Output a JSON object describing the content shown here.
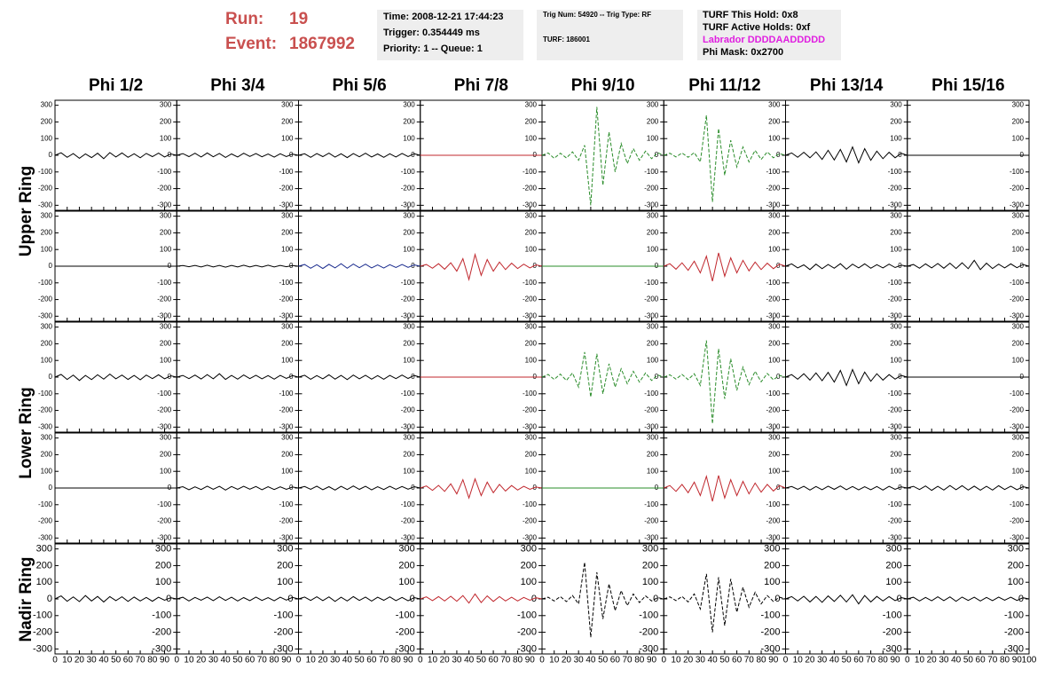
{
  "header": {
    "run_label": "Run:",
    "run": "19",
    "event_label": "Event:",
    "event": "1867992",
    "box1": [
      "Time: 2008-12-21 17:44:23",
      "Trigger: 0.354449 ms",
      "Priority: 1 -- Queue: 1"
    ],
    "box2": [
      "Trig Num: 54920 -- Trig Type: RF",
      "TURF: 186001"
    ],
    "box3": [
      "TURF This Hold: 0x8",
      "TURF Active Holds: 0xf",
      "Labrador DDDDAADDDDD",
      "Phi Mask: 0x2700"
    ]
  },
  "chart_data": {
    "type": "line",
    "columns": [
      "Phi 1/2",
      "Phi 3/4",
      "Phi 5/6",
      "Phi 7/8",
      "Phi 9/10",
      "Phi 11/12",
      "Phi 13/14",
      "Phi 15/16"
    ],
    "rows": [
      "Upper Ring",
      "Lower Ring",
      "Nadir Ring"
    ],
    "x": [
      0,
      5,
      10,
      15,
      20,
      25,
      30,
      35,
      40,
      45,
      50,
      55,
      60,
      65,
      70,
      75,
      80,
      85,
      90,
      95,
      100
    ],
    "xlim": [
      0,
      100
    ],
    "xticks": [
      0,
      10,
      20,
      30,
      40,
      50,
      60,
      70,
      80,
      90,
      100
    ],
    "ylim": [
      -330,
      330
    ],
    "yticks": [
      -300,
      -200,
      -100,
      0,
      100,
      200,
      300
    ],
    "panels": [
      {
        "color": "#000000",
        "values": [
          0,
          15,
          -12,
          10,
          -18,
          8,
          -14,
          12,
          -20,
          16,
          -10,
          14,
          -12,
          9,
          -15,
          11,
          -8,
          13,
          -10,
          8,
          0
        ]
      },
      {
        "color": "#000000",
        "values": [
          0,
          10,
          -8,
          12,
          -10,
          14,
          -9,
          11,
          -13,
          8,
          -10,
          12,
          -7,
          10,
          -9,
          8,
          -11,
          9,
          -8,
          7,
          0
        ]
      },
      {
        "color": "#000000",
        "values": [
          0,
          9,
          -12,
          10,
          -8,
          13,
          -11,
          9,
          -14,
          10,
          -9,
          12,
          -10,
          8,
          -12,
          9,
          -10,
          11,
          -8,
          9,
          0
        ]
      },
      {
        "color": "#c0272d",
        "values": [
          0,
          0,
          0,
          0,
          0,
          0,
          0,
          0,
          0,
          0,
          0,
          0,
          0,
          0,
          0,
          0,
          0,
          0,
          0,
          0,
          0
        ]
      },
      {
        "color": "#2a8c2a",
        "dashed": true,
        "values": [
          0,
          14,
          -18,
          12,
          -16,
          20,
          -30,
          60,
          -300,
          290,
          -180,
          140,
          -100,
          70,
          -50,
          40,
          -30,
          25,
          -20,
          15,
          0
        ]
      },
      {
        "color": "#2a8c2a",
        "dashed": true,
        "values": [
          0,
          12,
          -10,
          14,
          -12,
          16,
          -40,
          240,
          -280,
          160,
          -120,
          90,
          -70,
          50,
          -40,
          30,
          -25,
          20,
          -15,
          10,
          0
        ]
      },
      {
        "color": "#000000",
        "values": [
          0,
          14,
          -12,
          18,
          -15,
          20,
          -25,
          30,
          -28,
          35,
          -40,
          50,
          -45,
          40,
          -30,
          25,
          -20,
          18,
          -15,
          12,
          0
        ]
      },
      {
        "color": "#000000",
        "values": [
          0,
          0,
          0,
          0,
          0,
          0,
          0,
          0,
          0,
          0,
          0,
          0,
          0,
          0,
          0,
          0,
          0,
          0,
          0,
          0,
          0
        ]
      },
      {
        "color": "#000000",
        "values": [
          0,
          0,
          0,
          0,
          0,
          0,
          0,
          0,
          0,
          0,
          0,
          0,
          0,
          0,
          0,
          0,
          0,
          0,
          0,
          0,
          0
        ]
      },
      {
        "color": "#000000",
        "values": [
          0,
          4,
          -3,
          5,
          -4,
          6,
          -5,
          4,
          -6,
          5,
          -4,
          6,
          -5,
          4,
          -5,
          6,
          -4,
          5,
          -3,
          4,
          0
        ]
      },
      {
        "color": "#1c2d8f",
        "values": [
          0,
          10,
          -12,
          9,
          -14,
          11,
          -10,
          15,
          -12,
          13,
          -9,
          12,
          -10,
          8,
          -11,
          9,
          -8,
          10,
          -7,
          8,
          0
        ]
      },
      {
        "color": "#c0272d",
        "values": [
          0,
          10,
          -12,
          15,
          -18,
          20,
          -30,
          45,
          -80,
          70,
          -55,
          40,
          -30,
          25,
          -20,
          18,
          -14,
          12,
          -10,
          8,
          0
        ]
      },
      {
        "color": "#2a8c2a",
        "values": [
          0,
          0,
          0,
          0,
          0,
          0,
          0,
          0,
          0,
          0,
          0,
          0,
          0,
          0,
          0,
          0,
          0,
          0,
          0,
          0,
          0
        ]
      },
      {
        "color": "#c0272d",
        "values": [
          0,
          15,
          -18,
          20,
          -25,
          30,
          -40,
          60,
          -90,
          80,
          -60,
          50,
          -40,
          35,
          -28,
          25,
          -20,
          18,
          -15,
          12,
          0
        ]
      },
      {
        "color": "#000000",
        "values": [
          0,
          14,
          -10,
          8,
          -20,
          12,
          -15,
          10,
          -12,
          15,
          -18,
          12,
          -10,
          14,
          -12,
          9,
          -10,
          12,
          -8,
          6,
          0
        ]
      },
      {
        "color": "#000000",
        "values": [
          0,
          10,
          -12,
          14,
          -10,
          16,
          -12,
          18,
          -14,
          20,
          -15,
          35,
          -20,
          18,
          -14,
          12,
          -10,
          14,
          -9,
          10,
          0
        ]
      },
      {
        "color": "#000000",
        "values": [
          0,
          16,
          -14,
          12,
          -20,
          10,
          -15,
          14,
          -12,
          18,
          -10,
          12,
          -14,
          10,
          -16,
          12,
          -9,
          14,
          -10,
          8,
          0
        ]
      },
      {
        "color": "#000000",
        "values": [
          0,
          10,
          -9,
          12,
          -11,
          15,
          -10,
          20,
          -14,
          10,
          -12,
          13,
          -9,
          11,
          -10,
          9,
          -12,
          10,
          -8,
          9,
          0
        ]
      },
      {
        "color": "#000000",
        "values": [
          0,
          11,
          -13,
          9,
          -10,
          14,
          -12,
          10,
          -15,
          12,
          -10,
          11,
          -12,
          9,
          -13,
          10,
          -9,
          12,
          -8,
          10,
          0
        ]
      },
      {
        "color": "#c0272d",
        "values": [
          0,
          0,
          0,
          0,
          0,
          0,
          0,
          0,
          0,
          0,
          0,
          0,
          0,
          0,
          0,
          0,
          0,
          0,
          0,
          0,
          0
        ]
      },
      {
        "color": "#2a8c2a",
        "dashed": true,
        "values": [
          0,
          16,
          -14,
          18,
          -20,
          25,
          -60,
          150,
          -120,
          140,
          -100,
          80,
          -60,
          50,
          -40,
          35,
          -30,
          25,
          -20,
          12,
          0
        ]
      },
      {
        "color": "#2a8c2a",
        "dashed": true,
        "values": [
          0,
          14,
          -12,
          16,
          -15,
          20,
          -50,
          220,
          -280,
          170,
          -130,
          110,
          -80,
          60,
          -45,
          35,
          -28,
          22,
          -16,
          10,
          0
        ]
      },
      {
        "color": "#000000",
        "values": [
          0,
          15,
          -13,
          20,
          -18,
          25,
          -22,
          28,
          -30,
          40,
          -50,
          45,
          -40,
          30,
          -25,
          20,
          -18,
          15,
          -12,
          10,
          0
        ]
      },
      {
        "color": "#000000",
        "values": [
          0,
          0,
          0,
          0,
          0,
          0,
          0,
          0,
          0,
          0,
          0,
          0,
          0,
          0,
          0,
          0,
          0,
          0,
          0,
          0,
          0
        ]
      },
      {
        "color": "#000000",
        "values": [
          0,
          0,
          0,
          0,
          0,
          0,
          0,
          0,
          0,
          0,
          0,
          0,
          0,
          0,
          0,
          0,
          0,
          0,
          0,
          0,
          0
        ]
      },
      {
        "color": "#000000",
        "values": [
          0,
          8,
          -10,
          7,
          -9,
          11,
          -8,
          10,
          -12,
          9,
          -8,
          10,
          -7,
          9,
          -10,
          8,
          -9,
          7,
          -8,
          6,
          0
        ]
      },
      {
        "color": "#000000",
        "values": [
          0,
          9,
          -8,
          11,
          -10,
          8,
          -12,
          10,
          -9,
          12,
          -8,
          10,
          -11,
          8,
          -9,
          10,
          -8,
          9,
          -7,
          8,
          0
        ]
      },
      {
        "color": "#c0272d",
        "values": [
          0,
          12,
          -14,
          16,
          -20,
          25,
          -35,
          50,
          -60,
          55,
          -45,
          35,
          -28,
          22,
          -18,
          15,
          -12,
          10,
          -8,
          6,
          0
        ]
      },
      {
        "color": "#2a8c2a",
        "values": [
          0,
          0,
          0,
          0,
          0,
          0,
          0,
          0,
          0,
          0,
          0,
          0,
          0,
          0,
          0,
          0,
          0,
          0,
          0,
          0,
          0
        ]
      },
      {
        "color": "#c0272d",
        "values": [
          0,
          15,
          -20,
          22,
          -28,
          35,
          -45,
          70,
          -80,
          75,
          -60,
          50,
          -45,
          40,
          -35,
          30,
          -25,
          22,
          -18,
          15,
          0
        ]
      },
      {
        "color": "#000000",
        "values": [
          0,
          9,
          -8,
          10,
          -12,
          9,
          -10,
          11,
          -8,
          12,
          -10,
          9,
          -11,
          8,
          -10,
          9,
          -12,
          10,
          -8,
          7,
          0
        ]
      },
      {
        "color": "#000000",
        "values": [
          0,
          10,
          -9,
          12,
          -14,
          10,
          -12,
          15,
          -10,
          14,
          -12,
          11,
          -13,
          10,
          -12,
          14,
          -9,
          11,
          -10,
          8,
          0
        ]
      },
      {
        "color": "#000000",
        "values": [
          0,
          18,
          -14,
          12,
          -16,
          20,
          -12,
          15,
          -18,
          14,
          -10,
          13,
          -15,
          11,
          -12,
          9,
          -14,
          10,
          -8,
          7,
          0
        ]
      },
      {
        "color": "#000000",
        "values": [
          0,
          10,
          -12,
          9,
          -8,
          11,
          -10,
          13,
          -9,
          10,
          -12,
          8,
          -10,
          11,
          -9,
          8,
          -11,
          10,
          -7,
          9,
          0
        ]
      },
      {
        "color": "#000000",
        "values": [
          0,
          11,
          -9,
          13,
          -10,
          12,
          -15,
          10,
          -12,
          14,
          -9,
          11,
          -13,
          10,
          -8,
          12,
          -10,
          9,
          -11,
          8,
          0
        ]
      },
      {
        "color": "#c0272d",
        "values": [
          0,
          12,
          -10,
          14,
          -12,
          16,
          -14,
          20,
          -25,
          30,
          -22,
          18,
          -15,
          14,
          -12,
          10,
          -12,
          9,
          -8,
          7,
          0
        ]
      },
      {
        "color": "#000000",
        "dashed": true,
        "values": [
          0,
          10,
          -12,
          14,
          -16,
          20,
          -30,
          220,
          -230,
          160,
          -120,
          90,
          -70,
          50,
          -40,
          30,
          -22,
          18,
          -12,
          8,
          0
        ]
      },
      {
        "color": "#000000",
        "dashed": true,
        "values": [
          0,
          12,
          -10,
          15,
          -18,
          30,
          -60,
          150,
          -200,
          130,
          -160,
          120,
          -80,
          70,
          -50,
          40,
          -30,
          20,
          -15,
          10,
          0
        ]
      },
      {
        "color": "#000000",
        "values": [
          0,
          14,
          -12,
          16,
          -18,
          15,
          -20,
          18,
          -15,
          22,
          -18,
          25,
          -30,
          20,
          -18,
          15,
          -12,
          14,
          -10,
          8,
          0
        ]
      },
      {
        "color": "#000000",
        "values": [
          0,
          10,
          -12,
          9,
          -11,
          13,
          -10,
          12,
          -14,
          11,
          -9,
          10,
          -12,
          9,
          -10,
          11,
          -8,
          10,
          -9,
          7,
          0
        ]
      }
    ]
  }
}
